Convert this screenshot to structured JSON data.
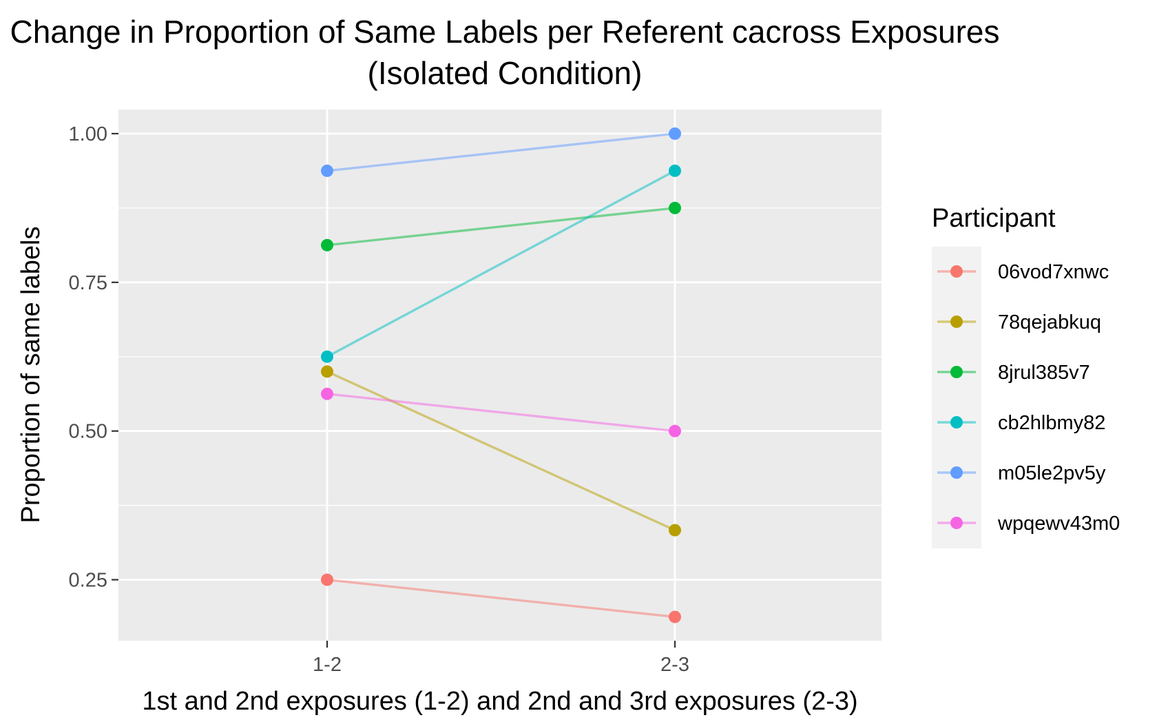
{
  "chart_data": {
    "type": "line",
    "title": "Change in Proportion of Same Labels per Referent cacross Exposures",
    "subtitle": "(Isolated Condition)",
    "xlabel": "1st and 2nd exposures (1-2) and 2nd and 3rd exposures (2-3)",
    "ylabel": "Proportion of same labels",
    "categories": [
      "1-2",
      "2-3"
    ],
    "y_ticks": [
      "0.25",
      "0.50",
      "0.75",
      "1.00"
    ],
    "ylim": [
      0.1475,
      1.0405
    ],
    "grid": true,
    "legend_title": "Participant",
    "legend_position": "right",
    "series": [
      {
        "name": "06vod7xnwc",
        "color": "#F8766D",
        "values": [
          0.25,
          0.1875
        ]
      },
      {
        "name": "78qejabkuq",
        "color": "#B79F00",
        "values": [
          0.6,
          0.3333
        ]
      },
      {
        "name": "8jrul385v7",
        "color": "#00BA38",
        "values": [
          0.8125,
          0.875
        ]
      },
      {
        "name": "cb2hlbmy82",
        "color": "#00BFC4",
        "values": [
          0.625,
          0.9375
        ]
      },
      {
        "name": "m05le2pv5y",
        "color": "#619CFF",
        "values": [
          0.9375,
          1.0
        ]
      },
      {
        "name": "wpqewv43m0",
        "color": "#F564E3",
        "values": [
          0.5625,
          0.5
        ]
      }
    ]
  }
}
